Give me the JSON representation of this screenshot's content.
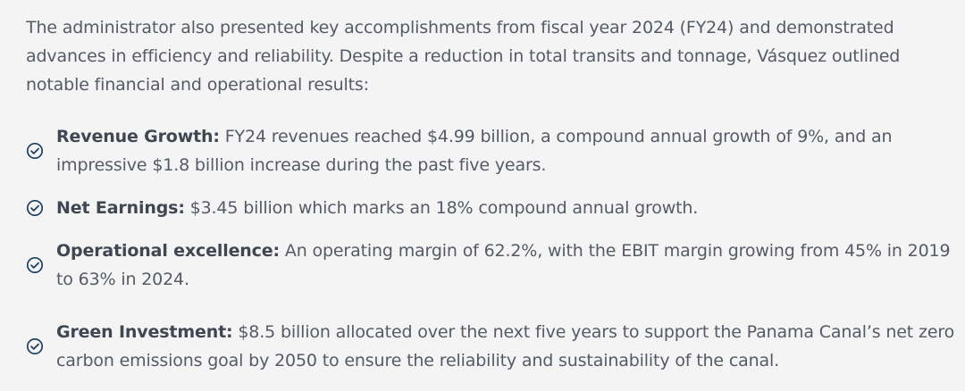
{
  "intro": "The administrator also presented key accomplishments from fiscal year 2024 (FY24) and demonstrated advances in efficiency and reliability. Despite a reduction in total transits and tonnage, Vásquez outlined notable financial and operational results:",
  "accomplishments": [
    {
      "icon": "check-circle-icon",
      "title": "Revenue Growth:",
      "text": " FY24 revenues reached $4.99 billion, a compound annual growth of 9%, and an impressive $1.8 billion increase during the past five years."
    },
    {
      "icon": "check-circle-icon",
      "title": "Net Earnings:",
      "text": " $3.45 billion which marks an 18% compound annual growth."
    },
    {
      "icon": "check-circle-icon",
      "title": "Operational excellence:",
      "text": " An operating margin of 62.2%, with the EBIT margin growing from 45% in 2019 to 63% in 2024."
    },
    {
      "icon": "check-circle-icon",
      "title": "Green Investment:",
      "text": " $8.5 billion allocated over the next five years to support the Panama Canal’s net zero carbon emissions goal by 2050 to ensure the reliability and sustainability of the canal."
    }
  ],
  "colors": {
    "background": "#f4f4f4",
    "text": "#555a66",
    "title": "#404652",
    "icon": "#1f3e62"
  }
}
